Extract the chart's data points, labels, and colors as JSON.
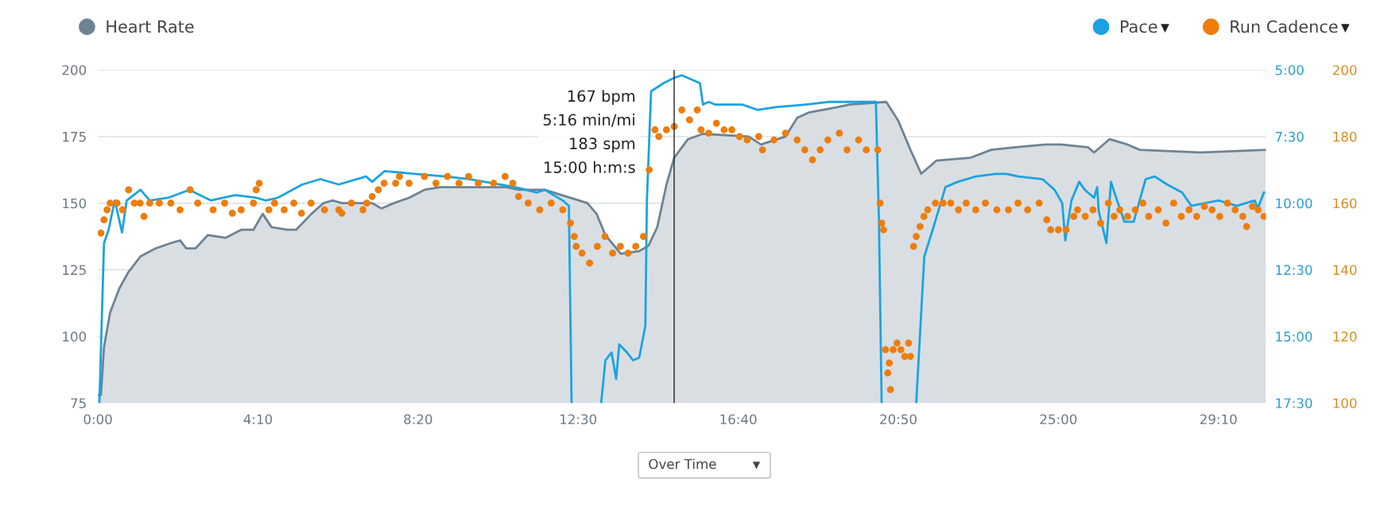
{
  "chart_data": {
    "type": "area",
    "xlim": [
      0,
      30.4
    ],
    "xticks": [
      {
        "value": 0,
        "label": "0:00"
      },
      {
        "value": 4.1667,
        "label": "4:10"
      },
      {
        "value": 8.3333,
        "label": "8:20"
      },
      {
        "value": 12.5,
        "label": "12:30"
      },
      {
        "value": 16.6667,
        "label": "16:40"
      },
      {
        "value": 20.8333,
        "label": "20:50"
      },
      {
        "value": 25,
        "label": "25:00"
      },
      {
        "value": 29.1667,
        "label": "29:10"
      }
    ],
    "ylim": [
      75,
      200
    ],
    "yticks": [
      75,
      100,
      125,
      150,
      175,
      200
    ],
    "y2lim": [
      17.5,
      5
    ],
    "y2ticks": [
      {
        "value": 5,
        "label": "5:00"
      },
      {
        "value": 7.5,
        "label": "7:30"
      },
      {
        "value": 10,
        "label": "10:00"
      },
      {
        "value": 12.5,
        "label": "12:30"
      },
      {
        "value": 15,
        "label": "15:00"
      },
      {
        "value": 17.5,
        "label": "17:30"
      }
    ],
    "y3lim": [
      100,
      200
    ],
    "y3ticks": [
      100,
      120,
      140,
      160,
      180,
      200
    ],
    "grid": "y",
    "legend": "top",
    "series": [
      {
        "name": "Heart Rate",
        "color": "#6d8394",
        "x": [
          0,
          0.08,
          0.16,
          0.32,
          0.56,
          0.79,
          1.11,
          1.5,
          1.9,
          2.14,
          2.3,
          2.54,
          2.86,
          3.33,
          3.73,
          4.05,
          4.29,
          4.52,
          4.92,
          5.16,
          5.56,
          5.87,
          6.11,
          6.35,
          7.14,
          7.38,
          7.7,
          8.1,
          8.5,
          8.9,
          9.84,
          10.63,
          10.95,
          11.07,
          11.63,
          12.74,
          12.98,
          13.21,
          13.61,
          14.09,
          14.33,
          14.56,
          14.8,
          15.0,
          15.36,
          15.75,
          16.94,
          17.26,
          17.9,
          18.2,
          18.5,
          19.25,
          19.56,
          20.52,
          20.83,
          21.15,
          21.43,
          21.83,
          22.7,
          23.25,
          23.88,
          24.67,
          25.06,
          25.77,
          25.93,
          26.33,
          26.8,
          27.12,
          28.69,
          30.4
        ],
        "values": [
          78,
          78,
          96,
          109,
          118,
          124,
          130,
          133,
          135,
          136,
          133,
          133,
          138,
          137,
          140,
          140,
          146,
          141,
          140,
          140,
          146,
          150,
          151,
          150,
          150,
          148,
          150,
          152,
          155,
          156,
          156,
          156,
          155,
          155,
          155,
          150,
          146,
          138,
          131,
          132,
          134,
          141,
          157,
          167,
          174,
          176,
          175,
          172,
          175,
          182,
          184,
          186,
          187,
          188,
          181,
          170,
          161,
          166,
          167,
          170,
          171,
          172,
          172,
          171,
          169,
          174,
          172,
          170,
          169,
          170
        ]
      },
      {
        "name": "Pace",
        "type": "line",
        "axis": "y2",
        "color": "#1aa3e0",
        "x": [
          0.04,
          0.16,
          0.28,
          0.44,
          0.63,
          0.75,
          1.11,
          1.35,
          1.83,
          2.38,
          2.94,
          3.57,
          4.13,
          4.37,
          4.68,
          5.32,
          5.79,
          6.27,
          6.98,
          7.14,
          7.46,
          8.25,
          9.05,
          9.68,
          10.87,
          11.43,
          11.63,
          12.1,
          12.26,
          12.33,
          12.7,
          13.1,
          13.21,
          13.37,
          13.49,
          13.57,
          13.77,
          13.93,
          14.09,
          14.25,
          14.29,
          14.4,
          14.72,
          15.0,
          15.2,
          15.52,
          15.67,
          15.75,
          15.9,
          16.06,
          16.77,
          17.17,
          17.64,
          18.43,
          19.06,
          19.6,
          20.25,
          20.33,
          20.4,
          20.8,
          21.3,
          21.51,
          21.75,
          22.06,
          22.38,
          22.85,
          23.37,
          23.64,
          23.96,
          24.59,
          24.9,
          25.1,
          25.18,
          25.34,
          25.54,
          25.69,
          25.93,
          26.01,
          26.05,
          26.25,
          26.37,
          26.48,
          26.72,
          26.96,
          27.27,
          27.51,
          27.83,
          28.22,
          28.46,
          29.17,
          29.64,
          30.11,
          30.19,
          30.35
        ],
        "values": [
          17.5,
          11.5,
          11.0,
          9.9,
          11.1,
          9.9,
          9.5,
          9.9,
          9.8,
          9.5,
          9.9,
          9.7,
          9.8,
          9.9,
          9.8,
          9.3,
          9.1,
          9.3,
          9.0,
          9.2,
          8.8,
          8.9,
          9.0,
          9.1,
          9.4,
          9.6,
          9.5,
          9.9,
          10.1,
          17.5,
          null,
          17.5,
          15.9,
          15.6,
          16.6,
          15.3,
          15.6,
          15.9,
          15.8,
          14.6,
          9.9,
          5.8,
          5.5,
          5.3,
          5.2,
          5.4,
          5.5,
          6.3,
          6.2,
          6.3,
          6.3,
          6.5,
          6.4,
          6.3,
          6.2,
          6.2,
          6.2,
          10.7,
          17.5,
          null,
          17.5,
          12.0,
          10.9,
          9.4,
          9.2,
          9.0,
          8.9,
          8.9,
          9.0,
          9.1,
          9.5,
          10.0,
          11.4,
          9.9,
          9.2,
          9.5,
          9.8,
          9.4,
          10.3,
          11.5,
          9.2,
          9.7,
          10.7,
          10.7,
          9.1,
          9.0,
          9.3,
          9.6,
          10.1,
          9.9,
          10.1,
          9.9,
          10.2,
          9.6
        ]
      },
      {
        "name": "Run Cadence",
        "type": "scatter",
        "axis": "y3",
        "color": "#ee7d0b",
        "x": [
          0.08,
          0.16,
          0.24,
          0.32,
          0.5,
          0.64,
          0.8,
          0.95,
          1.1,
          1.2,
          1.35,
          1.6,
          1.9,
          2.14,
          2.4,
          2.6,
          3.0,
          3.3,
          3.5,
          3.73,
          4.05,
          4.12,
          4.2,
          4.45,
          4.6,
          4.85,
          5.1,
          5.3,
          5.55,
          5.9,
          6.27,
          6.35,
          6.6,
          6.9,
          7.0,
          7.14,
          7.3,
          7.45,
          7.75,
          7.85,
          8.1,
          8.5,
          8.8,
          9.1,
          9.4,
          9.65,
          9.9,
          10.3,
          10.6,
          10.8,
          10.95,
          11.2,
          11.5,
          11.8,
          12.1,
          12.3,
          12.4,
          12.45,
          12.6,
          12.8,
          13.0,
          13.2,
          13.4,
          13.6,
          13.8,
          14.0,
          14.2,
          14.35,
          14.5,
          14.6,
          14.8,
          15.0,
          15.2,
          15.4,
          15.6,
          15.7,
          15.9,
          16.1,
          16.3,
          16.5,
          16.7,
          16.9,
          17.2,
          17.3,
          17.6,
          17.9,
          18.2,
          18.4,
          18.6,
          18.8,
          19.0,
          19.3,
          19.5,
          19.8,
          20.0,
          20.3,
          20.36,
          20.4,
          20.45,
          20.5,
          20.56,
          20.6,
          20.63,
          20.7,
          20.8,
          20.9,
          21.0,
          21.1,
          21.15,
          21.23,
          21.3,
          21.4,
          21.5,
          21.6,
          21.8,
          22.0,
          22.2,
          22.4,
          22.6,
          22.85,
          23.1,
          23.4,
          23.7,
          23.95,
          24.2,
          24.5,
          24.7,
          24.8,
          25.0,
          25.2,
          25.4,
          25.5,
          25.7,
          25.9,
          26.1,
          26.3,
          26.45,
          26.6,
          26.8,
          27.0,
          27.2,
          27.35,
          27.6,
          27.8,
          28.0,
          28.2,
          28.4,
          28.6,
          28.8,
          29.0,
          29.2,
          29.4,
          29.6,
          29.8,
          29.9,
          30.05,
          30.2,
          30.35
        ],
        "values": [
          151,
          155,
          158,
          160,
          160,
          158,
          164,
          160,
          160,
          156,
          160,
          160,
          160,
          158,
          164,
          160,
          158,
          160,
          157,
          158,
          160,
          164,
          166,
          158,
          160,
          158,
          160,
          157,
          160,
          158,
          158,
          157,
          160,
          158,
          160,
          162,
          164,
          166,
          166,
          168,
          166,
          168,
          166,
          168,
          166,
          168,
          166,
          166,
          168,
          166,
          162,
          160,
          158,
          160,
          158,
          154,
          150,
          147,
          145,
          142,
          147,
          150,
          145,
          147,
          145,
          147,
          150,
          170,
          182,
          180,
          182,
          183,
          188,
          185,
          188,
          182,
          181,
          184,
          182,
          182,
          180,
          179,
          180,
          176,
          179,
          181,
          179,
          176,
          173,
          176,
          179,
          181,
          176,
          179,
          176,
          176,
          160,
          154,
          152,
          116,
          109,
          112,
          104,
          116,
          118,
          116,
          114,
          118,
          114,
          147,
          150,
          153,
          156,
          158,
          160,
          160,
          160,
          158,
          160,
          158,
          160,
          158,
          158,
          160,
          158,
          160,
          155,
          152,
          152,
          152,
          156,
          158,
          156,
          158,
          154,
          160,
          156,
          158,
          156,
          158,
          160,
          156,
          158,
          154,
          160,
          156,
          158,
          156,
          159,
          158,
          156,
          160,
          158,
          156,
          153,
          159,
          158,
          156
        ]
      }
    ],
    "ref_lines": [
      {
        "axis": "x",
        "value": 15,
        "label": "167 bpm\n5:16 min/mi\n183 spm\n15:00 h:m:s",
        "color": "#222222"
      }
    ],
    "annotations": [
      "Over Time"
    ]
  }
}
